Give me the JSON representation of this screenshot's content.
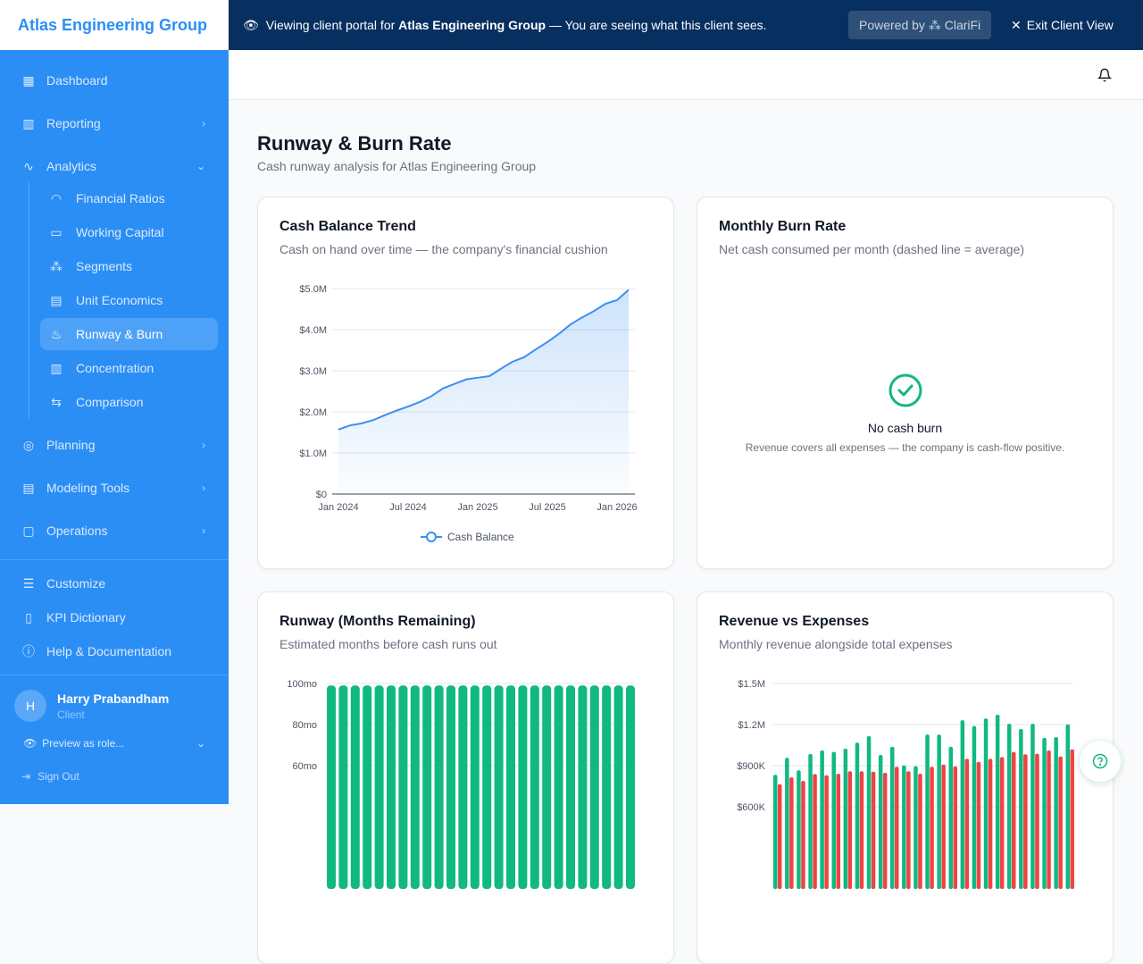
{
  "app": {
    "org_name": "Atlas Engineering Group"
  },
  "banner": {
    "prefix": "Viewing client portal for ",
    "org": "Atlas Engineering Group",
    "suffix": " — You are seeing what this client sees.",
    "powered_by": "Powered by",
    "brand": "ClariFi",
    "exit": "Exit Client View"
  },
  "sidebar": {
    "items": [
      {
        "label": "Dashboard",
        "icon": "grid-icon"
      },
      {
        "label": "Reporting",
        "icon": "bar-chart-icon"
      },
      {
        "label": "Analytics",
        "icon": "activity-icon"
      }
    ],
    "analytics_sub": [
      {
        "label": "Financial Ratios",
        "icon": "gauge-icon"
      },
      {
        "label": "Working Capital",
        "icon": "wallet-icon"
      },
      {
        "label": "Segments",
        "icon": "boxes-icon"
      },
      {
        "label": "Unit Economics",
        "icon": "calculator-icon"
      },
      {
        "label": "Runway & Burn",
        "icon": "flame-icon",
        "active": true
      },
      {
        "label": "Concentration",
        "icon": "bar-chart-icon"
      },
      {
        "label": "Comparison",
        "icon": "arrows-icon"
      }
    ],
    "items2": [
      {
        "label": "Planning",
        "icon": "target-icon"
      },
      {
        "label": "Modeling Tools",
        "icon": "calculator-icon"
      },
      {
        "label": "Operations",
        "icon": "clipboard-icon"
      }
    ],
    "footer_items": [
      {
        "label": "Customize",
        "icon": "sliders-icon"
      },
      {
        "label": "KPI Dictionary",
        "icon": "book-icon"
      },
      {
        "label": "Help & Documentation",
        "icon": "help-icon"
      }
    ],
    "user": {
      "initial": "H",
      "name": "Harry Prabandham",
      "role": "Client"
    },
    "preview": "Preview as role...",
    "sign_out": "Sign Out"
  },
  "page": {
    "title": "Runway & Burn Rate",
    "subtitle": "Cash runway analysis for Atlas Engineering Group"
  },
  "cards": {
    "cash": {
      "title": "Cash Balance Trend",
      "subtitle": "Cash on hand over time — the company's financial cushion"
    },
    "burn": {
      "title": "Monthly Burn Rate",
      "subtitle": "Net cash consumed per month (dashed line = average)",
      "empty_title": "No cash burn",
      "empty_text": "Revenue covers all expenses — the company is cash-flow positive."
    },
    "runway": {
      "title": "Runway (Months Remaining)",
      "subtitle": "Estimated months before cash runs out"
    },
    "revexp": {
      "title": "Revenue vs Expenses",
      "subtitle": "Monthly revenue alongside total expenses"
    }
  },
  "colors": {
    "accent": "#2b8ef5",
    "banner": "#072f5f",
    "line": "#3b8ff0",
    "green": "#10b981",
    "red": "#ef4444"
  },
  "chart_data": [
    {
      "type": "area",
      "series": [
        {
          "name": "Cash Balance",
          "values": [
            1.57,
            1.67,
            1.72,
            1.8,
            1.92,
            2.03,
            2.13,
            2.24,
            2.38,
            2.57,
            2.68,
            2.79,
            2.83,
            2.87,
            3.05,
            3.22,
            3.33,
            3.52,
            3.7,
            3.9,
            4.13,
            4.3,
            4.45,
            4.63,
            4.72,
            4.97
          ]
        }
      ],
      "x_start": "Jan 2024",
      "x_ticks": [
        "Jan 2024",
        "Jul 2024",
        "Jan 2025",
        "Jul 2025",
        "Jan 2026"
      ],
      "y_ticks": [
        "$0",
        "$1.0M",
        "$2.0M",
        "$3.0M",
        "$4.0M",
        "$5.0M"
      ],
      "ylim": [
        0,
        5
      ],
      "y_unit": "$M",
      "grid": true,
      "legend": "bottom"
    },
    {
      "type": "bar",
      "values": [
        99,
        99,
        99,
        99,
        99,
        99,
        99,
        99,
        99,
        99,
        99,
        99,
        99,
        99,
        99,
        99,
        99,
        99,
        99,
        99,
        99,
        99,
        99,
        99,
        99,
        99
      ],
      "y_ticks": [
        "100mo",
        "80mo",
        "60mo"
      ],
      "ylim": [
        0,
        100
      ]
    },
    {
      "type": "bar",
      "series": [
        {
          "color": "#10b981",
          "values": [
            833,
            957,
            866,
            985,
            1011,
            1000,
            1024,
            1068,
            1115,
            978,
            1038,
            902,
            896,
            1127,
            1127,
            1038,
            1232,
            1189,
            1244,
            1272,
            1206,
            1167,
            1206,
            1102,
            1109,
            1202
          ]
        },
        {
          "color": "#ef4444",
          "values": [
            765,
            815,
            789,
            839,
            830,
            841,
            859,
            859,
            856,
            848,
            892,
            859,
            841,
            892,
            908,
            895,
            950,
            928,
            950,
            963,
            1000,
            983,
            987,
            1011,
            967,
            1019
          ]
        }
      ],
      "y_ticks": [
        "$1.5M",
        "$1.2M",
        "$900K",
        "$600K"
      ],
      "ylim": [
        0,
        1500
      ],
      "y_unit": "$K"
    }
  ]
}
